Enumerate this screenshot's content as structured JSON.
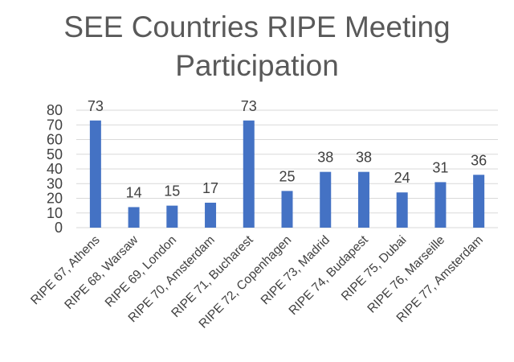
{
  "chart_data": {
    "type": "bar",
    "title_line1": "SEE Countries RIPE Meeting",
    "title_line2": "Participation",
    "xlabel": "",
    "ylabel": "",
    "categories": [
      "RIPE 67, Athens",
      "RIPE 68, Warsaw",
      "RIPE 69, London",
      "RIPE 70, Amsterdam",
      "RIPE 71, Bucharest",
      "RIPE 72, Copenhagen",
      "RIPE 73, Madrid",
      "RIPE 74, Budapest",
      "RIPE 75, Dubai",
      "RIPE 76, Marseille",
      "RIPE 77, Amsterdam"
    ],
    "values": [
      73,
      14,
      15,
      17,
      73,
      25,
      38,
      38,
      24,
      31,
      36
    ],
    "ylim": [
      0,
      80
    ],
    "yticks": [
      "0",
      "10",
      "20",
      "30",
      "40",
      "50",
      "60",
      "70",
      "80"
    ],
    "grid": true,
    "legend": "none",
    "bar_color": "#4472c4",
    "data_labels": true
  }
}
